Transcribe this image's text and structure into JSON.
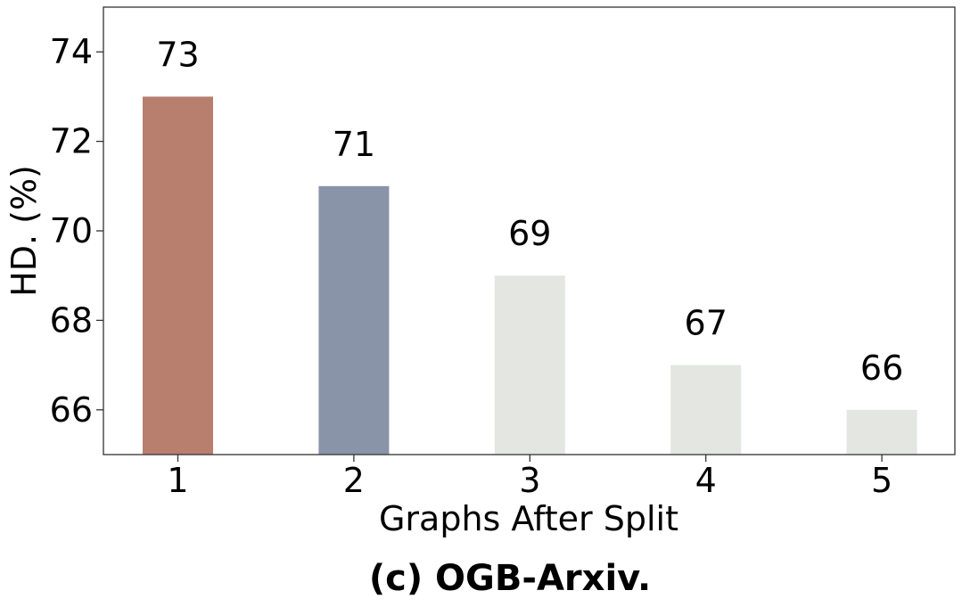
{
  "chart_data": {
    "type": "bar",
    "categories": [
      "1",
      "2",
      "3",
      "4",
      "5"
    ],
    "values": [
      73,
      71,
      69,
      67,
      66
    ],
    "data_labels": [
      "73",
      "71",
      "69",
      "67",
      "66"
    ],
    "bar_colors": [
      "#b87e6e",
      "#8a94a8",
      "#e4e6e1",
      "#e4e6e1",
      "#e4e6e1"
    ],
    "xlabel": "Graphs After Split",
    "ylabel": "HD. (%)",
    "ylim": [
      65,
      75
    ],
    "yticks": [
      66,
      68,
      70,
      72,
      74
    ],
    "ytick_labels": [
      "66",
      "68",
      "70",
      "72",
      "74"
    ],
    "caption": "(c) OGB-Arxiv.",
    "grid": false,
    "legend": "none"
  }
}
